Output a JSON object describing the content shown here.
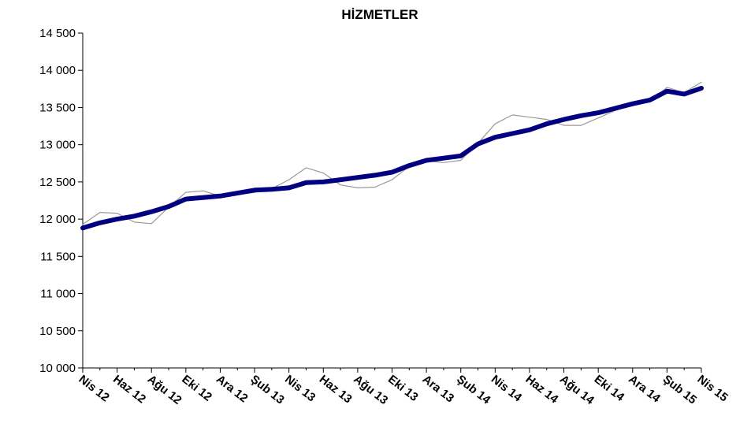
{
  "chart_data": {
    "type": "line",
    "title": "HİZMETLER",
    "xlabel": "",
    "ylabel": "",
    "ylim": [
      10000,
      14500
    ],
    "yticks": [
      10000,
      10500,
      11000,
      11500,
      12000,
      12500,
      13000,
      13500,
      14000,
      14500
    ],
    "ytick_labels": [
      "10 000",
      "10 500",
      "11 000",
      "11 500",
      "12 000",
      "12 500",
      "13 000",
      "13 500",
      "14 000",
      "14 500"
    ],
    "x": [
      "Nis 12",
      "May 12",
      "Haz 12",
      "Tem 12",
      "Ağu 12",
      "Eyl 12",
      "Eki 12",
      "Kas 12",
      "Ara 12",
      "Oca 13",
      "Şub 13",
      "Mar 13",
      "Nis 13",
      "May 13",
      "Haz 13",
      "Tem 13",
      "Ağu 13",
      "Eyl 13",
      "Eki 13",
      "Kas 13",
      "Ara 13",
      "Oca 14",
      "Şub 14",
      "Mar 14",
      "Nis 14",
      "May 14",
      "Haz 14",
      "Tem 14",
      "Ağu 14",
      "Eyl 14",
      "Eki 14",
      "Kas 14",
      "Ara 14",
      "Oca 15",
      "Şub 15",
      "Mar 15",
      "Nis 15"
    ],
    "xtick_labels": [
      "Nis 12",
      "Haz 12",
      "Ağu 12",
      "Eki 12",
      "Ara 12",
      "Şub 13",
      "Nis 13",
      "Haz 13",
      "Ağu 13",
      "Eki 13",
      "Ara 13",
      "Şub 14",
      "Nis 14",
      "Haz 14",
      "Ağu 14",
      "Eki 14",
      "Ara 14",
      "Şub 15",
      "Nis 15"
    ],
    "grid": false,
    "legend": "none",
    "series": [
      {
        "color": "#000080",
        "values": [
          11880,
          11950,
          12000,
          12040,
          12100,
          12170,
          12270,
          12290,
          12310,
          12350,
          12390,
          12400,
          12420,
          12490,
          12500,
          12530,
          12560,
          12590,
          12630,
          12720,
          12790,
          12820,
          12850,
          13010,
          13100,
          13150,
          13200,
          13280,
          13340,
          13390,
          13430,
          13490,
          13550,
          13600,
          13720,
          13680,
          13760
        ]
      },
      {
        "color": "#999999",
        "values": [
          11930,
          12090,
          12080,
          11960,
          11940,
          12160,
          12360,
          12380,
          12310,
          12330,
          12360,
          12410,
          12530,
          12690,
          12620,
          12460,
          12420,
          12430,
          12530,
          12710,
          12780,
          12760,
          12790,
          13020,
          13280,
          13400,
          13370,
          13340,
          13260,
          13260,
          13360,
          13460,
          13540,
          13580,
          13770,
          13700,
          13840
        ]
      }
    ]
  }
}
